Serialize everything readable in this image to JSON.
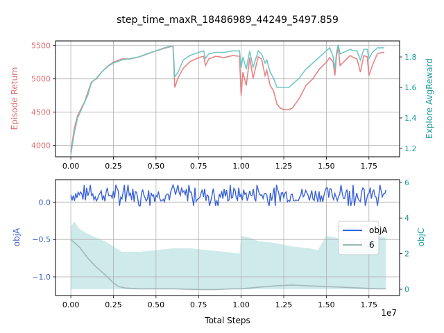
{
  "figure": {
    "title": "step_time_maxR_18486989_44249_5497.859",
    "exponent_label": "1e7"
  },
  "chart_data": [
    {
      "type": "line",
      "x_tick_labels": [
        "0.00",
        "0.25",
        "0.50",
        "0.75",
        "1.00",
        "1.25",
        "1.50",
        "1.75"
      ],
      "xlim": [
        -0.09,
        1.93
      ],
      "grid": true,
      "left_axis": {
        "label": "Episode Return",
        "color": "#e07070",
        "ylim": [
          3830,
          5570
        ],
        "ticks": [
          4000,
          4500,
          5000,
          5500
        ]
      },
      "right_axis": {
        "label": "Explore AvgReward",
        "color": "#1a9a9a",
        "ylim": [
          1.145,
          1.905
        ],
        "ticks": [
          1.2,
          1.4,
          1.6,
          1.8
        ]
      },
      "series": [
        {
          "name": "Episode Return",
          "axis": "left",
          "color": "#e87c7c",
          "x": [
            0.0,
            0.02,
            0.04,
            0.06,
            0.08,
            0.1,
            0.12,
            0.15,
            0.18,
            0.2,
            0.22,
            0.25,
            0.3,
            0.35,
            0.4,
            0.45,
            0.5,
            0.55,
            0.58,
            0.6,
            0.61,
            0.63,
            0.66,
            0.7,
            0.75,
            0.78,
            0.79,
            0.81,
            0.85,
            0.9,
            0.95,
            0.99,
            1.0,
            1.01,
            1.03,
            1.05,
            1.07,
            1.1,
            1.12,
            1.14,
            1.15,
            1.17,
            1.19,
            1.21,
            1.23,
            1.25,
            1.28,
            1.3,
            1.34,
            1.38,
            1.42,
            1.46,
            1.5,
            1.52,
            1.54,
            1.55,
            1.56,
            1.57,
            1.58,
            1.6,
            1.62,
            1.64,
            1.66,
            1.68,
            1.7,
            1.72,
            1.74,
            1.75,
            1.77,
            1.8,
            1.84
          ],
          "values": [
            3900,
            4250,
            4450,
            4550,
            4650,
            4800,
            4950,
            5000,
            5100,
            5150,
            5200,
            5250,
            5300,
            5300,
            5330,
            5380,
            5420,
            5460,
            5480,
            5490,
            4870,
            5020,
            5160,
            5260,
            5320,
            5340,
            5200,
            5300,
            5340,
            5320,
            5350,
            5340,
            4750,
            5100,
            4900,
            5320,
            5010,
            5330,
            5300,
            5050,
            5130,
            4900,
            4820,
            4620,
            4560,
            4540,
            4540,
            4560,
            4700,
            4900,
            5000,
            5150,
            5250,
            5320,
            5250,
            5050,
            5350,
            5480,
            5200,
            5250,
            5300,
            5350,
            5320,
            5300,
            5100,
            5350,
            5330,
            5050,
            5200,
            5380,
            5400
          ]
        },
        {
          "name": "Explore AvgReward",
          "axis": "right",
          "color": "#6cc4c4",
          "x": [
            0.0,
            0.02,
            0.04,
            0.06,
            0.08,
            0.1,
            0.12,
            0.15,
            0.18,
            0.2,
            0.22,
            0.25,
            0.3,
            0.35,
            0.4,
            0.45,
            0.5,
            0.55,
            0.58,
            0.6,
            0.61,
            0.63,
            0.66,
            0.7,
            0.75,
            0.78,
            0.79,
            0.81,
            0.85,
            0.9,
            0.95,
            0.99,
            1.0,
            1.01,
            1.03,
            1.05,
            1.07,
            1.1,
            1.12,
            1.14,
            1.15,
            1.17,
            1.19,
            1.21,
            1.23,
            1.25,
            1.28,
            1.3,
            1.34,
            1.38,
            1.42,
            1.46,
            1.5,
            1.52,
            1.54,
            1.55,
            1.56,
            1.57,
            1.58,
            1.6,
            1.62,
            1.64,
            1.66,
            1.68,
            1.7,
            1.72,
            1.74,
            1.75,
            1.77,
            1.8,
            1.84
          ],
          "values": [
            1.16,
            1.3,
            1.4,
            1.45,
            1.5,
            1.55,
            1.63,
            1.66,
            1.7,
            1.72,
            1.74,
            1.76,
            1.78,
            1.79,
            1.8,
            1.82,
            1.84,
            1.86,
            1.87,
            1.87,
            1.67,
            1.7,
            1.78,
            1.81,
            1.83,
            1.84,
            1.79,
            1.82,
            1.83,
            1.83,
            1.84,
            1.84,
            1.73,
            1.8,
            1.72,
            1.84,
            1.73,
            1.84,
            1.82,
            1.76,
            1.78,
            1.7,
            1.66,
            1.6,
            1.6,
            1.6,
            1.6,
            1.62,
            1.66,
            1.72,
            1.76,
            1.8,
            1.84,
            1.86,
            1.8,
            1.72,
            1.83,
            1.88,
            1.82,
            1.83,
            1.84,
            1.85,
            1.84,
            1.84,
            1.78,
            1.85,
            1.85,
            1.79,
            1.83,
            1.86,
            1.86
          ]
        }
      ]
    },
    {
      "type": "line",
      "x_tick_labels": [
        "0.00",
        "0.25",
        "0.50",
        "0.75",
        "1.00",
        "1.25",
        "1.50",
        "1.75"
      ],
      "xlabel": "Total Steps",
      "xlim": [
        -0.09,
        1.93
      ],
      "grid": true,
      "legend": {
        "placement": "right",
        "entries": [
          "objA",
          "6"
        ]
      },
      "left_axis": {
        "label": "objA",
        "color": "#3a5fcd",
        "ylim": [
          -1.25,
          0.3
        ],
        "ticks": [
          "0.0",
          "-0.5",
          "-1.0"
        ],
        "tick_values": [
          0.0,
          -0.5,
          -1.0
        ]
      },
      "right_axis": {
        "label": "objC",
        "color": "#1a9a9a",
        "ylim": [
          -0.35,
          6.15
        ],
        "ticks": [
          0,
          2,
          4,
          6
        ]
      },
      "series": [
        {
          "name": "objA",
          "axis": "left",
          "color": "#3a62d8",
          "style": "noisy-line",
          "x_start": 0.0,
          "x_end": 1.85,
          "points": 260,
          "mean": 0.08,
          "low": 0.0,
          "high": 0.2,
          "spike_high": 0.23,
          "spike_low": -0.05
        },
        {
          "name": "6",
          "axis": "left",
          "color": "#9fb4b4",
          "x": [
            0.0,
            0.05,
            0.1,
            0.15,
            0.2,
            0.25,
            0.28,
            0.32,
            0.4,
            0.5,
            0.6,
            0.75,
            0.85,
            0.95,
            1.0,
            1.1,
            1.2,
            1.3,
            1.4,
            1.5,
            1.6,
            1.7,
            1.8,
            1.85
          ],
          "values": [
            -0.5,
            -0.6,
            -0.75,
            -0.87,
            -0.97,
            -1.08,
            -1.13,
            -1.15,
            -1.16,
            -1.16,
            -1.16,
            -1.17,
            -1.17,
            -1.16,
            -1.16,
            -1.14,
            -1.12,
            -1.11,
            -1.12,
            -1.13,
            -1.14,
            -1.15,
            -1.16,
            -1.16
          ]
        },
        {
          "name": "objC",
          "axis": "right",
          "color": "#a8d8d8",
          "style": "filled-band",
          "x": [
            0.0,
            0.02,
            0.05,
            0.1,
            0.15,
            0.2,
            0.25,
            0.3,
            0.4,
            0.5,
            0.6,
            0.7,
            0.8,
            0.9,
            0.99,
            1.0,
            1.05,
            1.1,
            1.2,
            1.3,
            1.4,
            1.45,
            1.5,
            1.6,
            1.7,
            1.75,
            1.8,
            1.85
          ],
          "values": [
            3.5,
            3.8,
            3.4,
            3.1,
            2.9,
            2.7,
            2.4,
            2.1,
            2.1,
            2.2,
            2.3,
            2.3,
            2.2,
            2.1,
            2.0,
            3.0,
            2.9,
            2.7,
            2.6,
            2.4,
            2.3,
            2.2,
            3.0,
            2.8,
            2.6,
            2.7,
            3.0,
            2.9
          ]
        }
      ]
    }
  ]
}
